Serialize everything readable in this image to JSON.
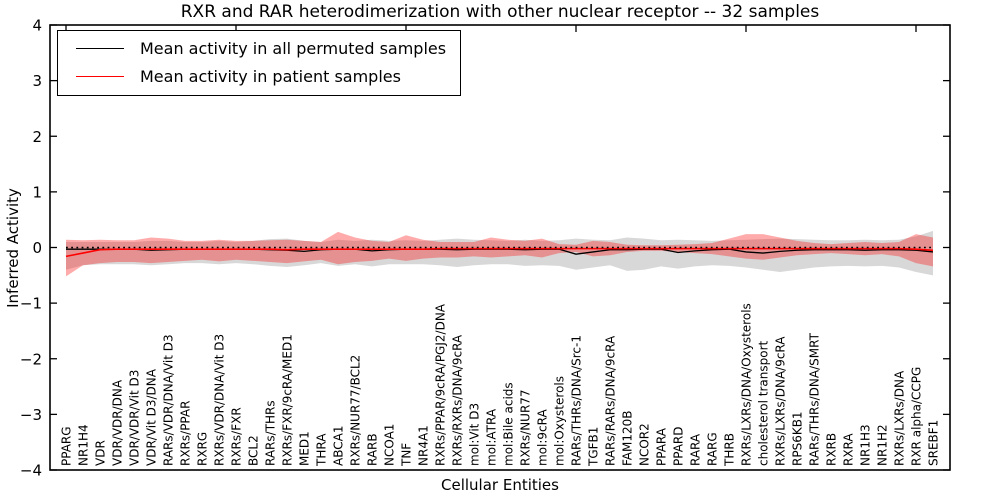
{
  "figure": {
    "title": "RXR and RAR heterodimerization with other nuclear receptor -- 32 samples",
    "xlabel": "Cellular Entities",
    "ylabel": "Inferred Activity",
    "legend": [
      {
        "label": "Mean activity in all permuted samples",
        "color": "#000000"
      },
      {
        "label": "Mean activity in patient samples",
        "color": "#ff0000"
      }
    ]
  },
  "chart_data": {
    "type": "line",
    "title": "RXR and RAR heterodimerization with other nuclear receptor -- 32 samples",
    "xlabel": "Cellular Entities",
    "ylabel": "Inferred Activity",
    "ylim": [
      -4,
      4
    ],
    "yticks": [
      -4,
      -3,
      -2,
      -1,
      0,
      1,
      2,
      3,
      4
    ],
    "grid": false,
    "legend_position": "upper left",
    "x_tick_rotation": 90,
    "x_tick_labels_inside": true,
    "top_tick_indices": [
      0,
      10,
      20,
      30,
      40,
      50
    ],
    "categories": [
      "PPARG",
      "NR1H4",
      "VDR",
      "VDR/VDR/DNA",
      "VDR/VDR/Vit D3",
      "VDR/Vit D3/DNA",
      "RARs/VDR/DNA/Vit D3",
      "RXRs/PPAR",
      "RXRG",
      "RXRs/VDR/DNA/Vit D3",
      "RXRs/FXR",
      "BCL2",
      "RARs/THRs",
      "RXRs/FXR/9cRA/MED1",
      "MED1",
      "THRA",
      "ABCA1",
      "RXRs/NUR77/BCL2",
      "RARB",
      "NCOA1",
      "TNF",
      "NR4A1",
      "RXRs/PPAR/9cRA/PGJ2/DNA",
      "RXRs/RXRs/DNA/9cRA",
      "mol:Vit D3",
      "mol:ATRA",
      "mol:Bile acids",
      "RXRs/NUR77",
      "mol:9cRA",
      "mol:Oxysterols",
      "RARs/THRs/DNA/Src-1",
      "TGFB1",
      "RARs/RARs/DNA/9cRA",
      "FAM120B",
      "NCOR2",
      "PPARA",
      "PPARD",
      "RARA",
      "RARG",
      "THRB",
      "RXRs/LXRs/DNA/Oxysterols",
      "cholesterol transport",
      "RXRs/LXRs/DNA/9cRA",
      "RPS6KB1",
      "RARs/THRs/DNA/SMRT",
      "RXRB",
      "RXRA",
      "NR1H3",
      "NR1H2",
      "RXRs/LXRs/DNA",
      "RXR alpha/CCPG",
      "SREBF1"
    ],
    "series": [
      {
        "name": "Mean activity in all permuted samples",
        "color": "#000000",
        "style": "solid",
        "values": [
          -0.03,
          -0.03,
          -0.03,
          -0.03,
          -0.03,
          -0.05,
          -0.04,
          -0.03,
          -0.03,
          -0.03,
          -0.03,
          -0.03,
          -0.04,
          -0.05,
          -0.07,
          -0.04,
          -0.03,
          -0.03,
          -0.06,
          -0.04,
          -0.03,
          -0.03,
          -0.03,
          -0.04,
          -0.03,
          -0.03,
          -0.03,
          -0.04,
          -0.03,
          -0.03,
          -0.12,
          -0.08,
          -0.04,
          -0.04,
          -0.03,
          -0.03,
          -0.09,
          -0.06,
          -0.04,
          -0.03,
          -0.08,
          -0.1,
          -0.07,
          -0.05,
          -0.04,
          -0.04,
          -0.04,
          -0.05,
          -0.04,
          -0.04,
          -0.05,
          -0.08
        ]
      },
      {
        "name": "Mean activity in patient samples",
        "color": "#ff0000",
        "style": "solid",
        "values": [
          -0.16,
          -0.1,
          -0.04,
          -0.03,
          -0.03,
          -0.03,
          -0.03,
          -0.03,
          -0.03,
          -0.03,
          -0.03,
          -0.03,
          -0.03,
          -0.04,
          -0.03,
          -0.03,
          -0.03,
          -0.03,
          -0.03,
          -0.03,
          -0.03,
          -0.03,
          -0.02,
          -0.02,
          -0.02,
          -0.02,
          -0.02,
          -0.02,
          -0.02,
          -0.02,
          -0.02,
          -0.02,
          -0.02,
          -0.02,
          -0.02,
          -0.02,
          -0.02,
          -0.02,
          -0.02,
          -0.02,
          -0.02,
          -0.02,
          -0.02,
          -0.02,
          -0.02,
          -0.02,
          -0.02,
          -0.02,
          -0.02,
          -0.02,
          -0.03,
          -0.05
        ]
      }
    ],
    "baseline": {
      "value": 0,
      "style": "dotted",
      "color": "#000000"
    },
    "bands": [
      {
        "name": "permuted samples spread",
        "color": "#999999",
        "opacity": 0.38,
        "upper": [
          0.1,
          0.1,
          0.1,
          0.1,
          0.1,
          0.12,
          0.12,
          0.1,
          0.1,
          0.12,
          0.1,
          0.12,
          0.15,
          0.16,
          0.12,
          0.1,
          0.14,
          0.12,
          0.14,
          0.12,
          0.13,
          0.12,
          0.14,
          0.16,
          0.14,
          0.13,
          0.12,
          0.14,
          0.12,
          0.13,
          0.16,
          0.14,
          0.13,
          0.18,
          0.16,
          0.13,
          0.14,
          0.13,
          0.12,
          0.13,
          0.14,
          0.15,
          0.16,
          0.15,
          0.14,
          0.13,
          0.13,
          0.14,
          0.13,
          0.14,
          0.2,
          0.3
        ],
        "lower": [
          -0.4,
          -0.32,
          -0.3,
          -0.3,
          -0.3,
          -0.32,
          -0.3,
          -0.28,
          -0.28,
          -0.3,
          -0.28,
          -0.3,
          -0.33,
          -0.35,
          -0.32,
          -0.28,
          -0.33,
          -0.3,
          -0.34,
          -0.3,
          -0.3,
          -0.3,
          -0.32,
          -0.35,
          -0.32,
          -0.3,
          -0.3,
          -0.33,
          -0.32,
          -0.33,
          -0.4,
          -0.36,
          -0.32,
          -0.42,
          -0.4,
          -0.34,
          -0.38,
          -0.34,
          -0.32,
          -0.33,
          -0.36,
          -0.4,
          -0.44,
          -0.4,
          -0.36,
          -0.34,
          -0.33,
          -0.34,
          -0.33,
          -0.36,
          -0.44,
          -0.5
        ]
      },
      {
        "name": "patient samples spread",
        "color": "#ff0000",
        "opacity": 0.33,
        "upper": [
          0.14,
          0.13,
          0.14,
          0.13,
          0.13,
          0.18,
          0.16,
          0.12,
          0.12,
          0.14,
          0.12,
          0.12,
          0.13,
          0.14,
          0.12,
          0.1,
          0.28,
          0.18,
          0.12,
          0.1,
          0.22,
          0.14,
          0.1,
          0.1,
          0.1,
          0.18,
          0.14,
          0.12,
          0.16,
          0.06,
          0.05,
          0.12,
          0.1,
          0.05,
          0.04,
          0.04,
          0.05,
          0.06,
          0.08,
          0.16,
          0.24,
          0.24,
          0.18,
          0.12,
          0.08,
          0.06,
          0.08,
          0.1,
          0.08,
          0.1,
          0.24,
          0.18
        ],
        "lower": [
          -0.52,
          -0.32,
          -0.28,
          -0.26,
          -0.26,
          -0.28,
          -0.26,
          -0.24,
          -0.22,
          -0.25,
          -0.22,
          -0.24,
          -0.26,
          -0.28,
          -0.25,
          -0.22,
          -0.3,
          -0.26,
          -0.24,
          -0.2,
          -0.24,
          -0.2,
          -0.18,
          -0.18,
          -0.16,
          -0.18,
          -0.16,
          -0.14,
          -0.18,
          -0.1,
          -0.08,
          -0.16,
          -0.14,
          -0.08,
          -0.06,
          -0.06,
          -0.08,
          -0.1,
          -0.12,
          -0.16,
          -0.2,
          -0.22,
          -0.18,
          -0.14,
          -0.12,
          -0.1,
          -0.12,
          -0.14,
          -0.12,
          -0.16,
          -0.28,
          -0.34
        ]
      }
    ]
  }
}
